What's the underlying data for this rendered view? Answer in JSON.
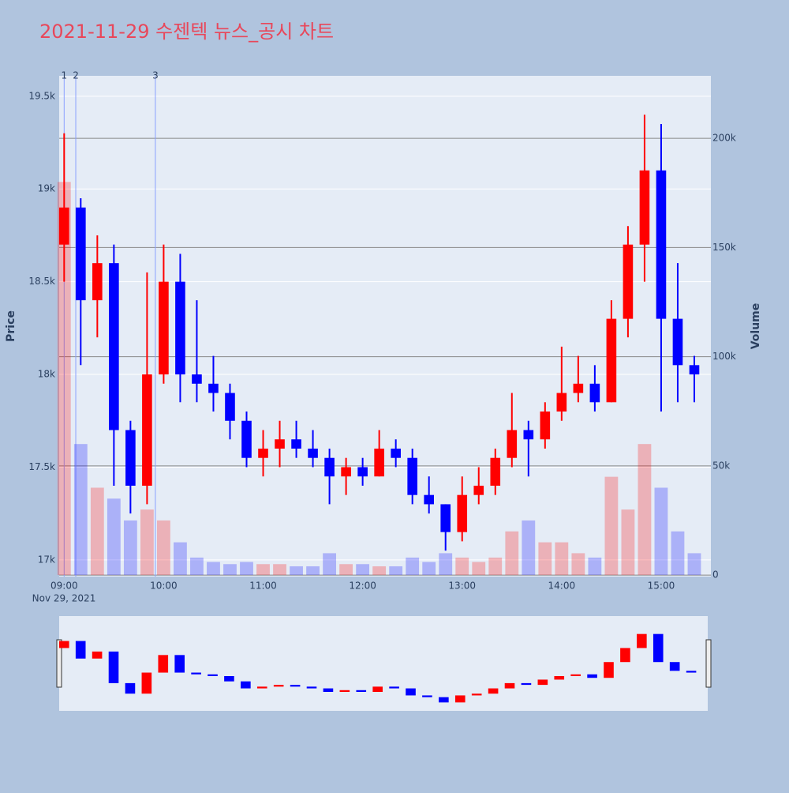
{
  "chart_data": {
    "type": "candlestick",
    "title": "2021-11-29 수젠텍 뉴스_공시 차트",
    "y_title": "Price",
    "y2_title": "Volume",
    "x_date_label": "Nov 29, 2021",
    "increasing_color": "#ff0000",
    "decreasing_color": "#0000ff",
    "grid": true,
    "xlim": [
      "2021-11-29 08:57",
      "2021-11-29 15:30"
    ],
    "xticks": [
      {
        "value": "2021-11-29 09:00",
        "label": "09:00"
      },
      {
        "value": "2021-11-29 10:00",
        "label": "10:00"
      },
      {
        "value": "2021-11-29 11:00",
        "label": "11:00"
      },
      {
        "value": "2021-11-29 12:00",
        "label": "12:00"
      },
      {
        "value": "2021-11-29 13:00",
        "label": "13:00"
      },
      {
        "value": "2021-11-29 14:00",
        "label": "14:00"
      },
      {
        "value": "2021-11-29 15:00",
        "label": "15:00"
      }
    ],
    "ylim": [
      16910,
      19610
    ],
    "yticks": [
      {
        "value": 17000,
        "label": "17k"
      },
      {
        "value": 17500,
        "label": "17.5k"
      },
      {
        "value": 18000,
        "label": "18k"
      },
      {
        "value": 18500,
        "label": "18.5k"
      },
      {
        "value": 19000,
        "label": "19k"
      },
      {
        "value": 19500,
        "label": "19.5k"
      }
    ],
    "y2lim": [
      -700,
      228600
    ],
    "y2ticks": [
      0,
      {
        "value": 50000,
        "label": "50k"
      },
      {
        "value": 100000,
        "label": "100k"
      },
      {
        "value": 150000,
        "label": "150k"
      },
      {
        "value": 200000,
        "label": "200k"
      }
    ],
    "news_markers": [
      {
        "x": "2021-11-29 09:00",
        "label": "1"
      },
      {
        "x": "2021-11-29 09:07",
        "label": "2"
      },
      {
        "x": "2021-11-29 09:55",
        "label": "3"
      }
    ],
    "x": [
      "2021-11-29 09:00",
      "2021-11-29 09:10",
      "2021-11-29 09:20",
      "2021-11-29 09:30",
      "2021-11-29 09:40",
      "2021-11-29 09:50",
      "2021-11-29 10:00",
      "2021-11-29 10:10",
      "2021-11-29 10:20",
      "2021-11-29 10:30",
      "2021-11-29 10:40",
      "2021-11-29 10:50",
      "2021-11-29 11:00",
      "2021-11-29 11:10",
      "2021-11-29 11:20",
      "2021-11-29 11:30",
      "2021-11-29 11:40",
      "2021-11-29 11:50",
      "2021-11-29 12:00",
      "2021-11-29 12:10",
      "2021-11-29 12:20",
      "2021-11-29 12:30",
      "2021-11-29 12:40",
      "2021-11-29 12:50",
      "2021-11-29 13:00",
      "2021-11-29 13:10",
      "2021-11-29 13:20",
      "2021-11-29 13:30",
      "2021-11-29 13:40",
      "2021-11-29 13:50",
      "2021-11-29 14:00",
      "2021-11-29 14:10",
      "2021-11-29 14:20",
      "2021-11-29 14:30",
      "2021-11-29 14:40",
      "2021-11-29 14:50",
      "2021-11-29 15:00",
      "2021-11-29 15:10",
      "2021-11-29 15:20"
    ],
    "open": [
      18700,
      18900,
      18400,
      18600,
      17700,
      17400,
      18000,
      18500,
      18000,
      17950,
      17900,
      17750,
      17550,
      17600,
      17650,
      17600,
      17550,
      17450,
      17500,
      17450,
      17600,
      17550,
      17350,
      17300,
      17150,
      17350,
      17400,
      17550,
      17700,
      17650,
      17800,
      17900,
      17950,
      17850,
      18300,
      18700,
      19100,
      18300,
      18050
    ],
    "high": [
      19300,
      18950,
      18750,
      18700,
      17750,
      18550,
      18700,
      18650,
      18400,
      18100,
      17950,
      17800,
      17700,
      17750,
      17750,
      17700,
      17600,
      17550,
      17550,
      17700,
      17650,
      17600,
      17450,
      17300,
      17450,
      17500,
      17600,
      17900,
      17750,
      17850,
      18150,
      18100,
      18050,
      18400,
      18800,
      19400,
      19350,
      18600,
      18100
    ],
    "low": [
      18500,
      18050,
      18200,
      17400,
      17250,
      17300,
      17950,
      17850,
      17850,
      17800,
      17650,
      17500,
      17450,
      17500,
      17550,
      17500,
      17300,
      17350,
      17400,
      17450,
      17500,
      17300,
      17250,
      17050,
      17100,
      17300,
      17350,
      17500,
      17450,
      17600,
      17750,
      17850,
      17800,
      17850,
      18200,
      18500,
      17800,
      17850,
      17850
    ],
    "close": [
      18900,
      18400,
      18600,
      17700,
      17400,
      18000,
      18500,
      18000,
      17950,
      17900,
      17750,
      17550,
      17600,
      17650,
      17600,
      17550,
      17450,
      17500,
      17450,
      17600,
      17550,
      17350,
      17300,
      17150,
      17350,
      17400,
      17550,
      17700,
      17650,
      17800,
      17900,
      17950,
      17850,
      18300,
      18700,
      19100,
      18300,
      18050,
      18000
    ],
    "volume": [
      180000,
      60000,
      40000,
      35000,
      25000,
      30000,
      25000,
      15000,
      8000,
      6000,
      5000,
      6000,
      5000,
      5000,
      4000,
      4000,
      10000,
      5000,
      5000,
      4000,
      4000,
      8000,
      6000,
      10000,
      8000,
      6000,
      8000,
      20000,
      25000,
      15000,
      15000,
      10000,
      8000,
      45000,
      30000,
      60000,
      40000,
      20000,
      10000
    ]
  }
}
